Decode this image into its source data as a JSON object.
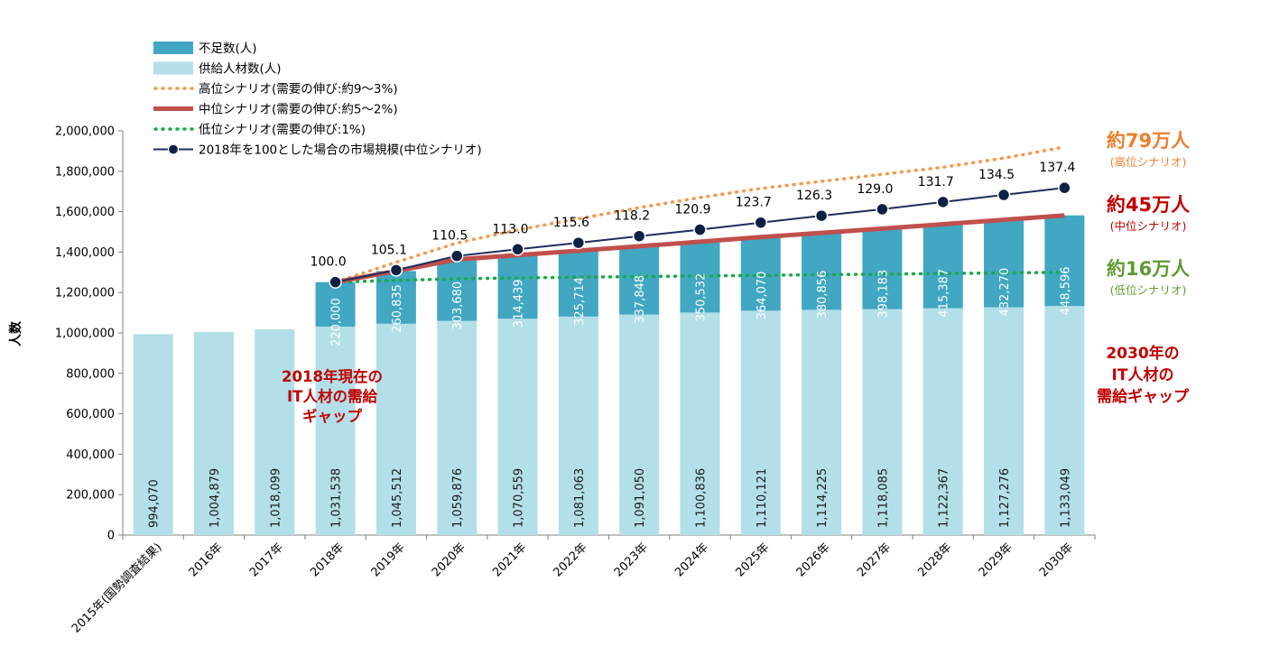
{
  "chart_data": {
    "type": "bar",
    "ylabel": "人数",
    "ylim": [
      0,
      2000000
    ],
    "yticks": [
      0,
      200000,
      400000,
      600000,
      800000,
      1000000,
      1200000,
      1400000,
      1600000,
      1800000,
      2000000
    ],
    "ytick_labels": [
      "0",
      "200,000",
      "400,000",
      "600,000",
      "800,000",
      "1,000,000",
      "1,200,000",
      "1,400,000",
      "1,600,000",
      "1,800,000",
      "2,000,000"
    ],
    "grid": false,
    "legend_position": "top-left",
    "categories": [
      "2015年(国勢調査結果)",
      "2016年",
      "2017年",
      "2018年",
      "2019年",
      "2020年",
      "2021年",
      "2022年",
      "2023年",
      "2024年",
      "2025年",
      "2026年",
      "2027年",
      "2028年",
      "2029年",
      "2030年"
    ],
    "series": [
      {
        "name": "供給人材数(人)",
        "kind": "stacked-bar",
        "color": "#b3dfe8",
        "values": [
          994070,
          1004879,
          1018099,
          1031538,
          1045512,
          1059876,
          1070559,
          1081063,
          1091050,
          1100836,
          1110121,
          1114225,
          1118085,
          1122367,
          1127276,
          1133049
        ],
        "labels": [
          "994,070",
          "1,004,879",
          "1,018,099",
          "1,031,538",
          "1,045,512",
          "1,059,876",
          "1,070,559",
          "1,081,063",
          "1,091,050",
          "1,100,836",
          "1,110,121",
          "1,114,225",
          "1,118,085",
          "1,122,367",
          "1,127,276",
          "1,133,049"
        ]
      },
      {
        "name": "不足数(人)",
        "kind": "stacked-bar",
        "color": "#41a7c3",
        "values": [
          null,
          null,
          null,
          220000,
          260835,
          303680,
          314439,
          325714,
          337848,
          350532,
          364070,
          380856,
          398183,
          415387,
          432270,
          448596
        ],
        "labels": [
          "",
          "",
          "",
          "220,000",
          "260,835",
          "303,680",
          "314,439",
          "325,714",
          "337,848",
          "350,532",
          "364,070",
          "380,856",
          "398,183",
          "415,387",
          "432,270",
          "448,596"
        ]
      },
      {
        "name": "高位シナリオ(需要の伸び:約9～3%)",
        "kind": "dotted-line",
        "color": "#f39a4f",
        "values": [
          null,
          null,
          null,
          1251538,
          1350000,
          1445000,
          1510000,
          1565000,
          1620000,
          1670000,
          1715000,
          1750000,
          1785000,
          1820000,
          1865000,
          1920000
        ]
      },
      {
        "name": "中位シナリオ(需要の伸び:約5～2%)",
        "kind": "thick-line",
        "color": "#c0504d",
        "values": [
          null,
          null,
          null,
          1251538,
          1306347,
          1363556,
          1384998,
          1406777,
          1428898,
          1451368,
          1474191,
          1495081,
          1516268,
          1537754,
          1559546,
          1581645
        ]
      },
      {
        "name": "低位シナリオ(需要の伸び:1%)",
        "kind": "dotted-line",
        "color": "#1ca84a",
        "values": [
          null,
          null,
          null,
          1251538,
          1260000,
          1268000,
          1272000,
          1276000,
          1279000,
          1282000,
          1285000,
          1288000,
          1291000,
          1294000,
          1297000,
          1300000
        ]
      },
      {
        "name": "2018年を100とした場合の市場規模(中位シナリオ)",
        "kind": "marker-line",
        "color": "#1f2d5c",
        "marker_color": "#0d2142",
        "y_values_on_axis": [
          null,
          null,
          null,
          1251538,
          1311000,
          1381000,
          1414000,
          1446000,
          1479000,
          1511000,
          1546000,
          1580000,
          1612000,
          1648000,
          1683000,
          1718000
        ],
        "values": [
          null,
          null,
          null,
          100.0,
          105.1,
          110.5,
          113.0,
          115.6,
          118.2,
          120.9,
          123.7,
          126.3,
          129.0,
          131.7,
          134.5,
          137.4
        ],
        "labels": [
          "",
          "",
          "",
          "100.0",
          "105.1",
          "110.5",
          "113.0",
          "115.6",
          "118.2",
          "120.9",
          "123.7",
          "126.3",
          "129.0",
          "131.7",
          "134.5",
          "137.4"
        ]
      }
    ],
    "annotations": [
      {
        "id": "high",
        "text": "約79万人",
        "sub": "(高位シナリオ)",
        "color": "#ee7f2d"
      },
      {
        "id": "mid",
        "text": "約45万人",
        "sub": "(中位シナリオ)",
        "color": "#c00000"
      },
      {
        "id": "low",
        "text": "約16万人",
        "sub": "(低位シナリオ)",
        "color": "#5f9b32"
      },
      {
        "id": "gap2018",
        "lines": [
          "2018年現在の",
          "IT人材の需給",
          "ギャップ"
        ],
        "color": "#c00000"
      },
      {
        "id": "gap2030",
        "lines": [
          "2030年の",
          "IT人材の",
          "需給ギャップ"
        ],
        "color": "#c00000"
      }
    ]
  }
}
